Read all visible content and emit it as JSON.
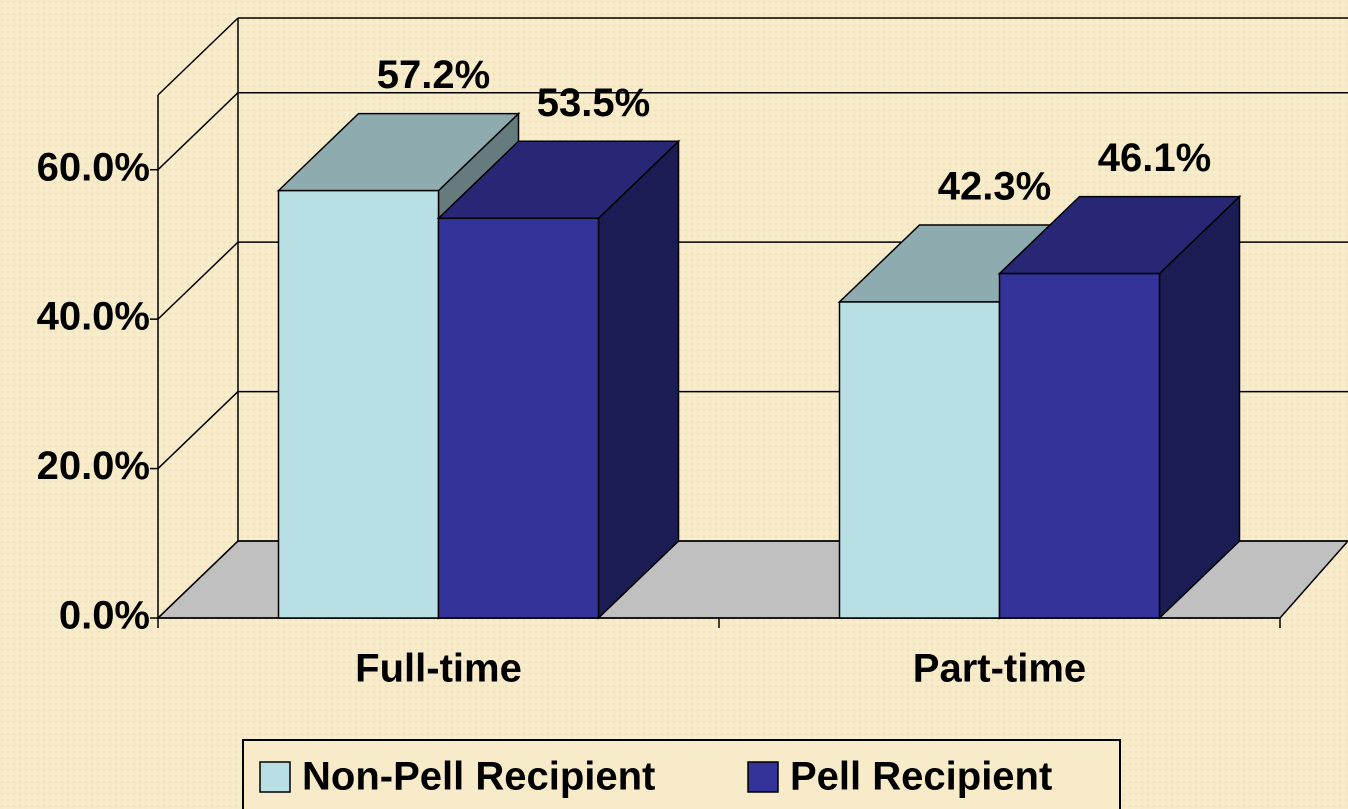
{
  "chart_data": {
    "type": "bar3d",
    "categories": [
      "Full-time",
      "Part-time"
    ],
    "series": [
      {
        "name": "Non-Pell Recipient",
        "color": "#b8e0e4",
        "values": [
          57.2,
          42.3
        ],
        "value_labels": [
          "57.2%",
          "42.3%"
        ]
      },
      {
        "name": "Pell Recipient",
        "color": "#333399",
        "values": [
          53.5,
          46.1
        ],
        "value_labels": [
          "53.5%",
          "46.1%"
        ]
      }
    ],
    "ylim": [
      0,
      70
    ],
    "yticks": [
      {
        "value": 0,
        "label": "0.0%"
      },
      {
        "value": 20,
        "label": "20.0%"
      },
      {
        "value": 40,
        "label": "40.0%"
      },
      {
        "value": 60,
        "label": "60.0%"
      }
    ],
    "grid": true,
    "legend": "bottom"
  }
}
